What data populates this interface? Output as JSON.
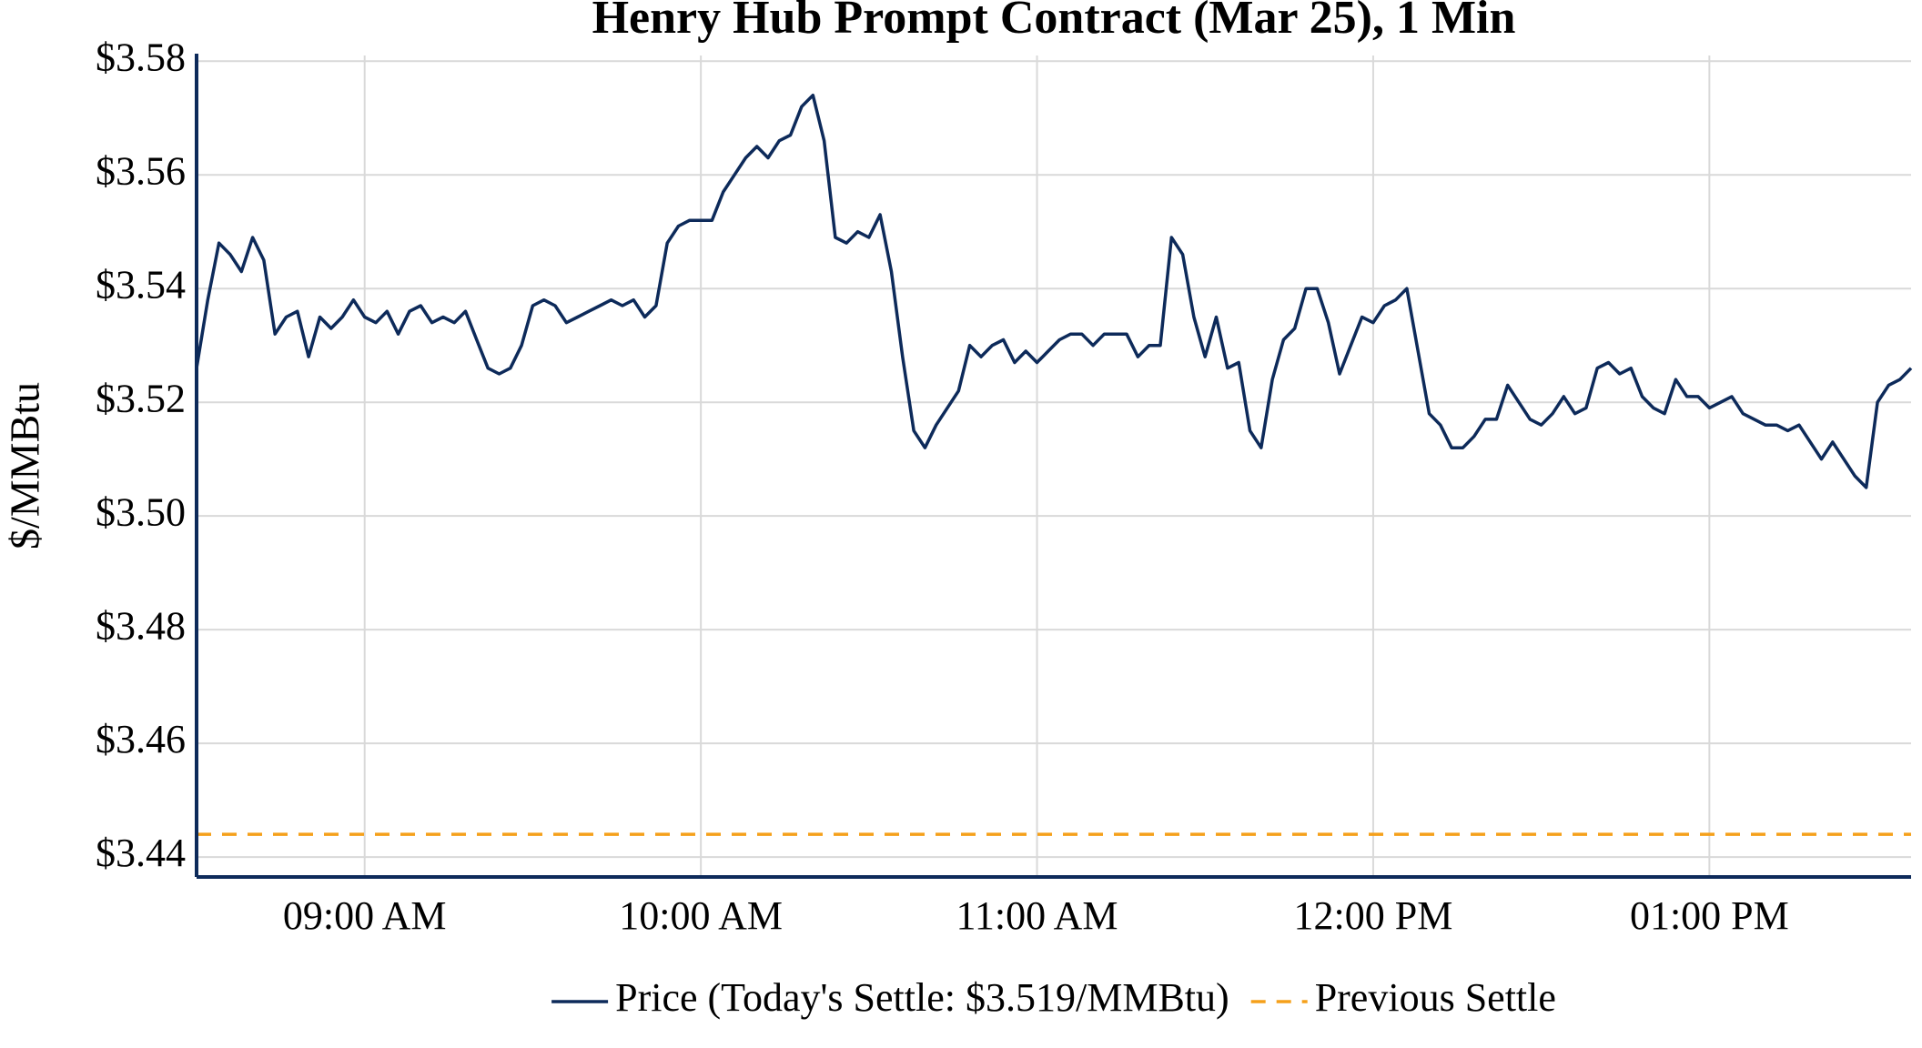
{
  "chart_data": {
    "type": "line",
    "title": "Henry Hub Prompt Contract (Mar 25), 1 Min",
    "y_label": "$/MMBtu",
    "x": [
      "08:30",
      "08:32",
      "08:34",
      "08:36",
      "08:38",
      "08:40",
      "08:42",
      "08:44",
      "08:46",
      "08:48",
      "08:50",
      "08:52",
      "08:54",
      "08:56",
      "08:58",
      "09:00",
      "09:02",
      "09:04",
      "09:06",
      "09:08",
      "09:10",
      "09:12",
      "09:14",
      "09:16",
      "09:18",
      "09:20",
      "09:22",
      "09:24",
      "09:26",
      "09:28",
      "09:30",
      "09:32",
      "09:34",
      "09:36",
      "09:38",
      "09:40",
      "09:42",
      "09:44",
      "09:46",
      "09:48",
      "09:50",
      "09:52",
      "09:54",
      "09:56",
      "09:58",
      "10:00",
      "10:02",
      "10:04",
      "10:06",
      "10:08",
      "10:10",
      "10:12",
      "10:14",
      "10:16",
      "10:18",
      "10:20",
      "10:22",
      "10:24",
      "10:26",
      "10:28",
      "10:30",
      "10:32",
      "10:34",
      "10:36",
      "10:38",
      "10:40",
      "10:42",
      "10:44",
      "10:46",
      "10:48",
      "10:50",
      "10:52",
      "10:54",
      "10:56",
      "10:58",
      "11:00",
      "11:02",
      "11:04",
      "11:06",
      "11:08",
      "11:10",
      "11:12",
      "11:14",
      "11:16",
      "11:18",
      "11:20",
      "11:22",
      "11:24",
      "11:26",
      "11:28",
      "11:30",
      "11:32",
      "11:34",
      "11:36",
      "11:38",
      "11:40",
      "11:42",
      "11:44",
      "11:46",
      "11:48",
      "11:50",
      "11:52",
      "11:54",
      "11:56",
      "11:58",
      "12:00",
      "12:02",
      "12:04",
      "12:06",
      "12:08",
      "12:10",
      "12:12",
      "12:14",
      "12:16",
      "12:18",
      "12:20",
      "12:22",
      "12:24",
      "12:26",
      "12:28",
      "12:30",
      "12:32",
      "12:34",
      "12:36",
      "12:38",
      "12:40",
      "12:42",
      "12:44",
      "12:46",
      "12:48",
      "12:50",
      "12:52",
      "12:54",
      "12:56",
      "12:58",
      "13:00",
      "13:02",
      "13:04",
      "13:06",
      "13:08",
      "13:10",
      "13:12",
      "13:14",
      "13:16",
      "13:18",
      "13:20",
      "13:22",
      "13:24",
      "13:26",
      "13:28",
      "13:30",
      "13:32",
      "13:34",
      "13:36"
    ],
    "series": [
      {
        "name": "Price (Today's Settle: $3.519/MMBtu)",
        "color": "#0d2a5a",
        "values": [
          3.526,
          3.538,
          3.548,
          3.546,
          3.543,
          3.549,
          3.545,
          3.532,
          3.535,
          3.536,
          3.528,
          3.535,
          3.533,
          3.535,
          3.538,
          3.535,
          3.534,
          3.536,
          3.532,
          3.536,
          3.537,
          3.534,
          3.535,
          3.534,
          3.536,
          3.531,
          3.526,
          3.525,
          3.526,
          3.53,
          3.537,
          3.538,
          3.537,
          3.534,
          3.535,
          3.536,
          3.537,
          3.538,
          3.537,
          3.538,
          3.535,
          3.537,
          3.548,
          3.551,
          3.552,
          3.552,
          3.552,
          3.557,
          3.56,
          3.563,
          3.565,
          3.563,
          3.566,
          3.567,
          3.572,
          3.574,
          3.566,
          3.549,
          3.548,
          3.55,
          3.549,
          3.553,
          3.543,
          3.528,
          3.515,
          3.512,
          3.516,
          3.519,
          3.522,
          3.53,
          3.528,
          3.53,
          3.531,
          3.527,
          3.529,
          3.527,
          3.529,
          3.531,
          3.532,
          3.532,
          3.53,
          3.532,
          3.532,
          3.532,
          3.528,
          3.53,
          3.53,
          3.549,
          3.546,
          3.535,
          3.528,
          3.535,
          3.526,
          3.527,
          3.515,
          3.512,
          3.524,
          3.531,
          3.533,
          3.54,
          3.54,
          3.534,
          3.525,
          3.53,
          3.535,
          3.534,
          3.537,
          3.538,
          3.54,
          3.529,
          3.518,
          3.516,
          3.512,
          3.512,
          3.514,
          3.517,
          3.517,
          3.523,
          3.52,
          3.517,
          3.516,
          3.518,
          3.521,
          3.518,
          3.519,
          3.526,
          3.527,
          3.525,
          3.526,
          3.521,
          3.519,
          3.518,
          3.524,
          3.521,
          3.521,
          3.519,
          3.52,
          3.521,
          3.518,
          3.517,
          3.516,
          3.516,
          3.515,
          3.516,
          3.513,
          3.51,
          3.513,
          3.51,
          3.507,
          3.505,
          3.52,
          3.523,
          3.524,
          3.526
        ]
      }
    ],
    "reference_line": {
      "name": "Previous Settle",
      "value": 3.444,
      "color": "#f5a01a",
      "dashed": true
    },
    "xlim": [
      "08:30",
      "13:36"
    ],
    "xticks": [
      {
        "value": "09:00",
        "label": "09:00 AM"
      },
      {
        "value": "10:00",
        "label": "10:00 AM"
      },
      {
        "value": "11:00",
        "label": "11:00 AM"
      },
      {
        "value": "12:00",
        "label": "12:00 PM"
      },
      {
        "value": "13:00",
        "label": "01:00 PM"
      }
    ],
    "ylim": [
      3.4365,
      3.581
    ],
    "yticks": [
      {
        "value": 3.44,
        "label": "$3.44"
      },
      {
        "value": 3.46,
        "label": "$3.46"
      },
      {
        "value": 3.48,
        "label": "$3.48"
      },
      {
        "value": 3.5,
        "label": "$3.50"
      },
      {
        "value": 3.52,
        "label": "$3.52"
      },
      {
        "value": 3.54,
        "label": "$3.54"
      },
      {
        "value": 3.56,
        "label": "$3.56"
      },
      {
        "value": 3.58,
        "label": "$3.58"
      }
    ],
    "grid": true,
    "legend": "bottom"
  }
}
